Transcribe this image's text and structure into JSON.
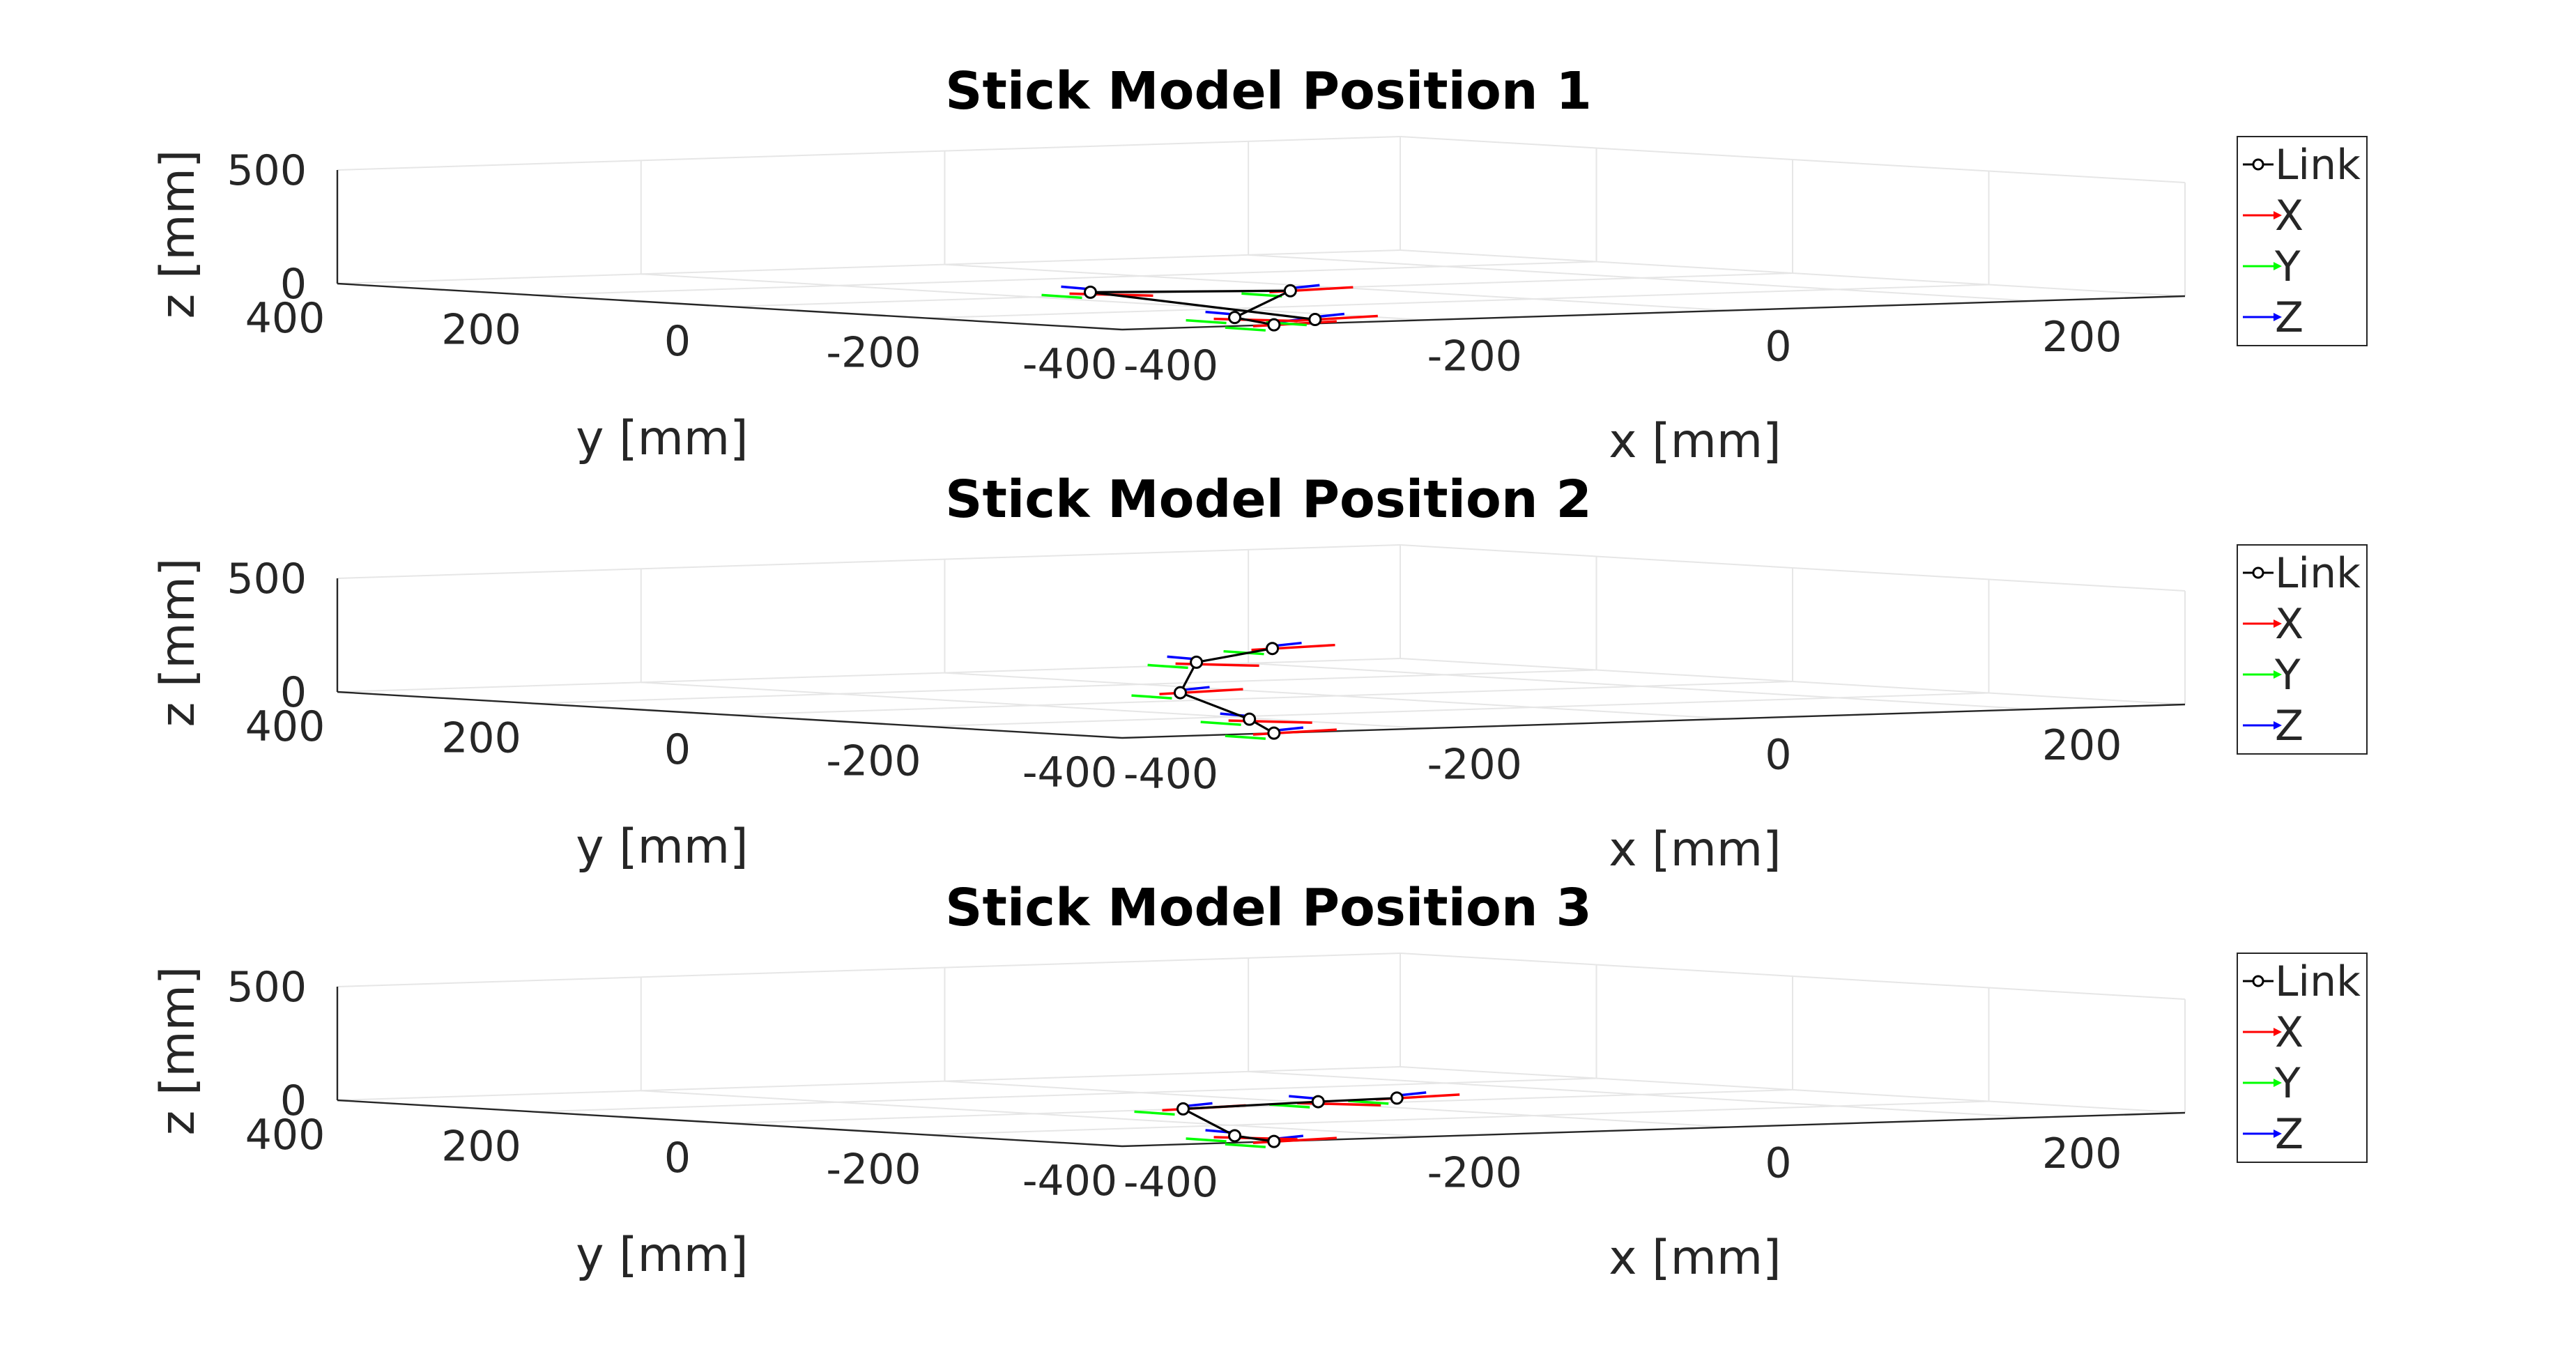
{
  "chart_data": [
    {
      "type": "3d-line",
      "title": "Stick Model Position 1",
      "xlabel": "x [mm]",
      "ylabel": "y [mm]",
      "zlabel": "z [mm]",
      "xlim": [
        -400,
        300
      ],
      "ylim": [
        -400,
        400
      ],
      "zlim": [
        0,
        500
      ],
      "xticks": [
        "-400",
        "-200",
        "0",
        "200"
      ],
      "yticks": [
        "-400",
        "-200",
        "0",
        "200",
        "400"
      ],
      "zticks": [
        "0",
        "500"
      ],
      "grid": true,
      "legend": {
        "location": "right",
        "entries": [
          "Link",
          "X",
          "Y",
          "Z"
        ]
      },
      "colors": {
        "Link": "#000000",
        "X": "#ff0000",
        "Y": "#00ff00",
        "Z": "#0000ff"
      },
      "joints": [
        {
          "x": -300,
          "y": -400,
          "z": 0
        },
        {
          "x": -300,
          "y": -360,
          "z": 22
        },
        {
          "x": -160,
          "y": -200,
          "z": 70
        },
        {
          "x": -240,
          "y": -120,
          "z": 60
        },
        {
          "x": -260,
          "y": -380,
          "z": 10
        }
      ]
    },
    {
      "type": "3d-line",
      "title": "Stick Model Position 2",
      "xlabel": "x [mm]",
      "ylabel": "y [mm]",
      "zlabel": "z [mm]",
      "xlim": [
        -400,
        300
      ],
      "ylim": [
        -400,
        400
      ],
      "zlim": [
        0,
        500
      ],
      "xticks": [
        "-400",
        "-200",
        "0",
        "200"
      ],
      "yticks": [
        "-400",
        "-200",
        "0",
        "200",
        "400"
      ],
      "zticks": [
        "0",
        "500"
      ],
      "grid": true,
      "legend": {
        "location": "right",
        "entries": [
          "Link",
          "X",
          "Y",
          "Z"
        ]
      },
      "colors": {
        "Link": "#000000",
        "X": "#ff0000",
        "Y": "#00ff00",
        "Z": "#0000ff"
      },
      "joints": [
        {
          "x": -300,
          "y": -400,
          "z": 0
        },
        {
          "x": -300,
          "y": -375,
          "z": 55
        },
        {
          "x": -310,
          "y": -320,
          "z": 160
        },
        {
          "x": -280,
          "y": -290,
          "z": 280
        },
        {
          "x": -230,
          "y": -290,
          "z": 330
        }
      ]
    },
    {
      "type": "3d-line",
      "title": "Stick Model Position 3",
      "xlabel": "x [mm]",
      "ylabel": "y [mm]",
      "zlabel": "z [mm]",
      "xlim": [
        -400,
        300
      ],
      "ylim": [
        -400,
        400
      ],
      "zlim": [
        0,
        500
      ],
      "xticks": [
        "-400",
        "-200",
        "0",
        "200"
      ],
      "yticks": [
        "-400",
        "-200",
        "0",
        "200",
        "400"
      ],
      "zticks": [
        "0",
        "500"
      ],
      "grid": true,
      "legend": {
        "location": "right",
        "entries": [
          "Link",
          "X",
          "Y",
          "Z"
        ]
      },
      "colors": {
        "Link": "#000000",
        "X": "#ff0000",
        "Y": "#00ff00",
        "Z": "#0000ff"
      },
      "joints": [
        {
          "x": -300,
          "y": -400,
          "z": 0
        },
        {
          "x": -300,
          "y": -360,
          "z": 15
        },
        {
          "x": -250,
          "y": -230,
          "z": 90
        },
        {
          "x": -90,
          "y": -120,
          "z": 60
        },
        {
          "x": 20,
          "y": -30,
          "z": 30
        }
      ]
    }
  ]
}
